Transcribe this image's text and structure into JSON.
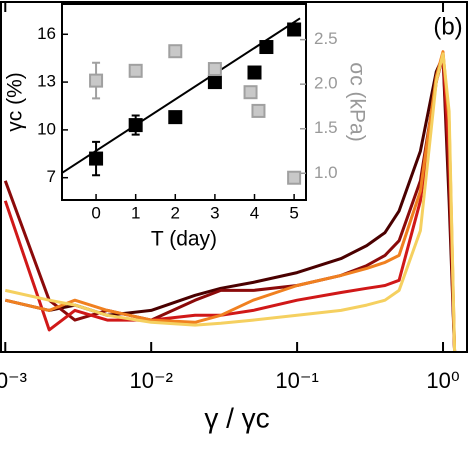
{
  "chart_data": [
    {
      "type": "line",
      "xlabel": "γ / γc",
      "panel_label": "(b)",
      "xscale": "log",
      "xlim": [
        0.00092,
        1.46
      ],
      "ylim": [
        0,
        1
      ],
      "xticks": [
        {
          "value": 0.001,
          "label": "10⁻³"
        },
        {
          "value": 0.01,
          "label": "10⁻²"
        },
        {
          "value": 0.1,
          "label": "10⁻¹"
        },
        {
          "value": 1,
          "label": "10⁰"
        }
      ],
      "x": [
        0.001,
        0.002,
        0.003,
        0.005,
        0.01,
        0.02,
        0.03,
        0.05,
        0.1,
        0.2,
        0.3,
        0.4,
        0.5,
        0.7,
        0.9,
        1.0,
        1.1,
        1.2
      ],
      "series": [
        {
          "color": "#4a0000",
          "values": [
            0.148,
            0.119,
            0.134,
            0.105,
            0.119,
            0.162,
            0.182,
            0.199,
            0.227,
            0.267,
            0.304,
            0.341,
            0.403,
            0.574,
            0.801,
            0.844,
            0.432,
            0
          ]
        },
        {
          "color": "#8b0a0a",
          "values": [
            0.489,
            0.148,
            0.091,
            0.119,
            0.091,
            0.148,
            0.176,
            0.176,
            0.19,
            0.219,
            0.247,
            0.276,
            0.318,
            0.489,
            0.773,
            0.844,
            0.489,
            0
          ]
        },
        {
          "color": "#d01818",
          "values": [
            0.432,
            0.063,
            0.119,
            0.091,
            0.091,
            0.105,
            0.105,
            0.119,
            0.148,
            0.17,
            0.182,
            0.19,
            0.205,
            0.432,
            0.773,
            0.852,
            0.574,
            0
          ]
        },
        {
          "color": "#f08020",
          "values": [
            0.148,
            0.119,
            0.148,
            0.119,
            0.091,
            0.085,
            0.105,
            0.148,
            0.19,
            0.219,
            0.239,
            0.256,
            0.276,
            0.46,
            0.787,
            0.858,
            0.659,
            0
          ]
        },
        {
          "color": "#f5d060",
          "values": [
            0.176,
            0.148,
            0.134,
            0.105,
            0.085,
            0.077,
            0.082,
            0.091,
            0.105,
            0.119,
            0.134,
            0.148,
            0.176,
            0.347,
            0.773,
            0.852,
            0.688,
            0
          ]
        }
      ]
    },
    {
      "type": "scatter",
      "xlabel": "T (day)",
      "ylabel": "γc (%)",
      "y2label": "σc (kPa)",
      "xlim": [
        -0.86,
        5.3
      ],
      "ylim": [
        5.6,
        17.9
      ],
      "y2lim": [
        0.7,
        2.9
      ],
      "xticks": [
        0,
        1,
        2,
        3,
        4,
        5
      ],
      "yticks": [
        7,
        10,
        13,
        16
      ],
      "y2ticks": [
        {
          "value": 1,
          "label": "1.0"
        },
        1.5,
        {
          "value": 2,
          "label": "2.0"
        },
        2.5
      ],
      "series": [
        {
          "color": "#000000",
          "x": [
            0,
            1,
            2,
            3,
            4,
            4.3,
            5
          ],
          "values": [
            8.2,
            10.3,
            10.8,
            13.0,
            13.6,
            15.2,
            16.3
          ],
          "errors": [
            1.05,
            0.6,
            null,
            null,
            null,
            null,
            null
          ]
        },
        {
          "color": "#a0a0a0",
          "axis": "y2",
          "x": [
            0,
            1,
            2,
            3,
            3.9,
            4.1,
            5
          ],
          "values": [
            2.04,
            2.15,
            2.37,
            2.17,
            1.91,
            1.7,
            0.95
          ],
          "errors": [
            0.2,
            null,
            null,
            null,
            null,
            null,
            null
          ]
        }
      ],
      "fit_line": {
        "color": "#000000",
        "x": [
          -0.86,
          5.15
        ],
        "values": [
          7.3,
          17.0
        ]
      }
    }
  ]
}
